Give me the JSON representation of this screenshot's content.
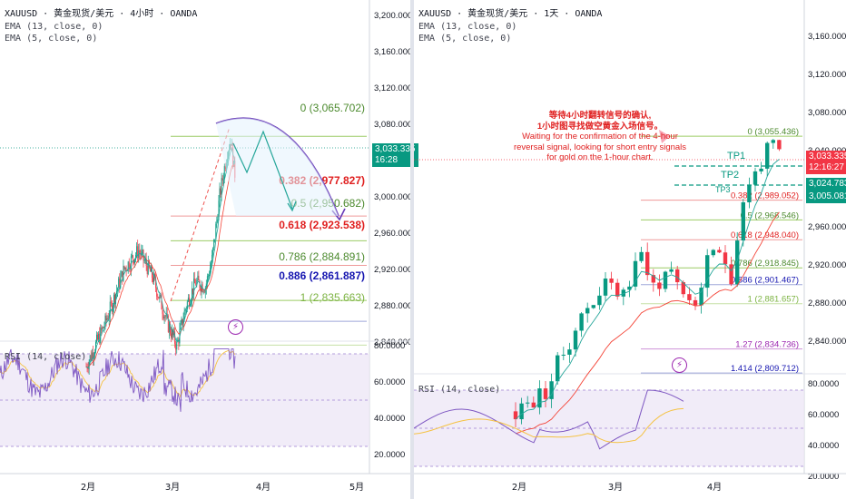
{
  "colors": {
    "up": "#089981",
    "down": "#f23645",
    "ema13": "#f44336",
    "ema5": "#26a69a",
    "rsi": "#7e57c2",
    "rsi_ma": "#f5c242",
    "purple": "#673ab7"
  },
  "left": {
    "header": {
      "line1": "XAUUSD · 黄金现货/美元 · 4小时 · OANDA",
      "line2": "EMA (13, close, 0)",
      "line3": "EMA (5, close, 0)"
    },
    "y_axis": {
      "labels": [
        "3,200.000",
        "3,160.000",
        "3,120.000",
        "3,080.000",
        "3,040.000",
        "3,000.000",
        "2,960.000",
        "2,920.000",
        "2,880.000",
        "2,840.000"
      ]
    },
    "rsi_axis": {
      "labels": [
        "80.0000",
        "60.0000",
        "40.0000",
        "20.0000"
      ]
    },
    "x_axis": {
      "labels": [
        "2月",
        "3月",
        "4月",
        "5月"
      ]
    },
    "current_price": {
      "price": "3,033.335",
      "countdown": "16:28"
    },
    "fib_levels": [
      {
        "label": "0 (3,065.702)",
        "color": "#4c8a2e"
      },
      {
        "label": "0.382 (2,977.827)",
        "color": "#e02020"
      },
      {
        "label": "0.5 (2,950.682)",
        "color": "#4c8a2e"
      },
      {
        "label": "0.618 (2,923.538)",
        "color": "#e02020"
      },
      {
        "label": "0.786 (2,884.891)",
        "color": "#4c8a2e"
      },
      {
        "label": "0.886 (2,861.887)",
        "color": "#1515b0"
      },
      {
        "label": "1 (2,835.663)",
        "color": "#7cb342"
      }
    ],
    "rsi_label": "RSI (14, close)",
    "alert_glyph": "⚡"
  },
  "right": {
    "header": {
      "line1": "XAUUSD · 黄金现货/美元 · 1天 · OANDA",
      "line2": "EMA (13, close, 0)",
      "line3": "EMA (5, close, 0)"
    },
    "y_axis": {
      "labels": [
        "3,160.000",
        "3,120.000",
        "3,080.000",
        "3,040.000",
        "3,000.000",
        "2,960.000",
        "2,920.000",
        "2,880.000",
        "2,840.000"
      ]
    },
    "rsi_axis": {
      "labels": [
        "80.0000",
        "60.0000",
        "40.0000",
        "20.0000"
      ]
    },
    "x_axis": {
      "labels": [
        "2月",
        "3月",
        "4月"
      ]
    },
    "current_price": {
      "price": "3,033.335",
      "countdown": "12:16:27"
    },
    "tp_prices": [
      "3,024.783",
      "3,005.081"
    ],
    "tp_labels": [
      "TP1",
      "TP2",
      "TP3"
    ],
    "fib_levels": [
      {
        "label": "0 (3,055.436)",
        "color": "#4c8a2e"
      },
      {
        "label": "0.382 (2,989.052)",
        "color": "#e02020"
      },
      {
        "label": "0.5 (2,968.546)",
        "color": "#4c8a2e"
      },
      {
        "label": "0.618 (2,948.040)",
        "color": "#e02020"
      },
      {
        "label": "0.786 (2,918.845)",
        "color": "#4c8a2e"
      },
      {
        "label": "0.886 (2,901.467)",
        "color": "#1515b0"
      },
      {
        "label": "1 (2,881.657)",
        "color": "#7cb342"
      },
      {
        "label": "1.27 (2,834.736)",
        "color": "#9c27b0"
      },
      {
        "label": "1.414 (2,809.712)",
        "color": "#1515b0"
      }
    ],
    "note": {
      "line1": "等待4小时翻转信号的确认,",
      "line2": "1小时图寻找做空黄金入场信号。",
      "line3": "Waiting for the confirmation of the 4-hour",
      "line4": "reversal signal, looking for short entry signals",
      "line5": "for gold on the 1-hour chart."
    },
    "rsi_label": "RSI (14, close)",
    "alert_glyph": "⚡"
  }
}
